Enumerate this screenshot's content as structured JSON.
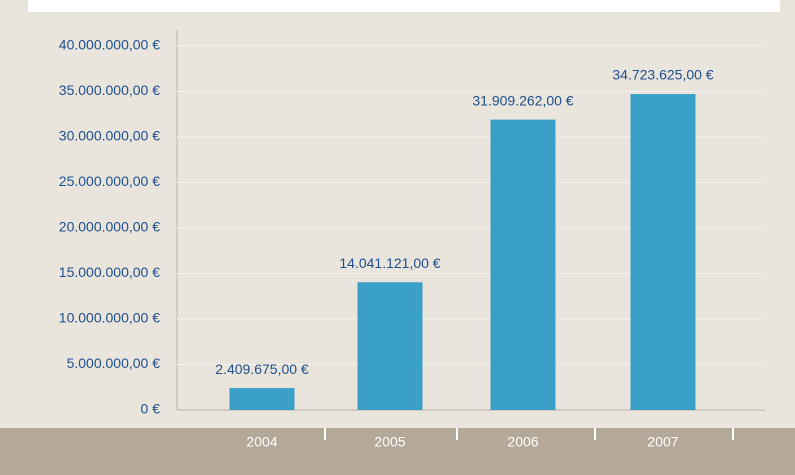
{
  "chart_data": {
    "type": "bar",
    "categories": [
      "2004",
      "2005",
      "2006",
      "2007"
    ],
    "values": [
      2409675,
      14041121,
      31909262,
      34723625
    ],
    "value_labels": [
      "2.409.675,00 €",
      "14.041.121,00 €",
      "31.909.262,00 €",
      "34.723.625,00 €"
    ],
    "color": "#3aa0c8",
    "ylim": [
      0,
      40000000
    ],
    "yticks": [
      {
        "value": 0,
        "label": "0 €"
      },
      {
        "value": 5000000,
        "label": "5.000.000,00 €"
      },
      {
        "value": 10000000,
        "label": "10.000.000,00 €"
      },
      {
        "value": 15000000,
        "label": "15.000.000,00 €"
      },
      {
        "value": 20000000,
        "label": "20.000.000,00 €"
      },
      {
        "value": 25000000,
        "label": "25.000.000,00 €"
      },
      {
        "value": 30000000,
        "label": "30.000.000,00 €"
      },
      {
        "value": 35000000,
        "label": "35.000.000,00 €"
      },
      {
        "value": 40000000,
        "label": "40.000.000,00 €"
      }
    ],
    "grid": true
  }
}
